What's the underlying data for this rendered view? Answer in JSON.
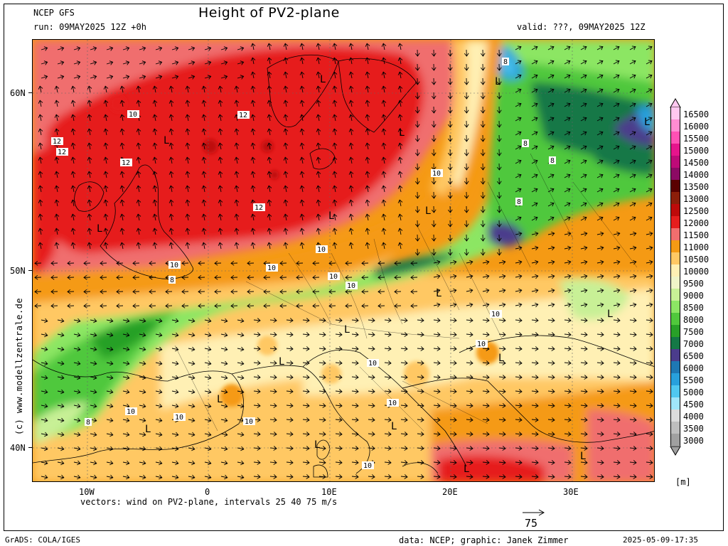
{
  "header": {
    "model": "NCEP GFS",
    "run": "run: 09MAY2025 12Z +0h",
    "title": "Height of PV2-plane",
    "valid": "valid: ???, 09MAY2025 12Z"
  },
  "axes": {
    "lat_labels": [
      "60N",
      "50N",
      "40N"
    ],
    "lon_labels": [
      "10W",
      "0",
      "10E",
      "20E",
      "30E"
    ]
  },
  "legend": {
    "values": [
      "16500",
      "16000",
      "15500",
      "15000",
      "14500",
      "14000",
      "13500",
      "13000",
      "12500",
      "12000",
      "11500",
      "11000",
      "10500",
      "10000",
      "9500",
      "9000",
      "8500",
      "8000",
      "7500",
      "7000",
      "6500",
      "6000",
      "5500",
      "5000",
      "4500",
      "4000",
      "3500",
      "3000"
    ],
    "colors": [
      "#ffc8f0",
      "#ff8cd2",
      "#ff50b4",
      "#e6148c",
      "#be0a78",
      "#8c0a64",
      "#5a0000",
      "#8c1e0a",
      "#be0a0a",
      "#e61e1e",
      "#f06e6e",
      "#f59a14",
      "#ffc864",
      "#fff0b4",
      "#f0f5c8",
      "#c8f096",
      "#8ce664",
      "#50c83c",
      "#28a028",
      "#147846",
      "#4b3c8c",
      "#1e78b4",
      "#28a0dc",
      "#50c8f0",
      "#a0e6fa",
      "#dcdcdc",
      "#bebebe",
      "#a0a0a0"
    ],
    "unit": "[m]"
  },
  "footer": {
    "vectors": "vectors: wind on PV2-plane, intervals 25 40 75 m/s",
    "scale_value": "75",
    "grads": "GrADS: COLA/IGES",
    "data_credit": "data: NCEP; graphic: Janek Zimmer",
    "timestamp": "2025-05-09-17:35",
    "copyright": "(c) www.modellzentrale.de"
  },
  "map_labels": {
    "lows": [
      "L",
      "L",
      "L",
      "L",
      "L",
      "L",
      "L",
      "L",
      "L",
      "L",
      "L",
      "L",
      "L",
      "L",
      "L",
      "L",
      "L",
      "L",
      "L"
    ],
    "contours": [
      "12",
      "12",
      "12",
      "12",
      "12",
      "10",
      "10",
      "10",
      "10",
      "10",
      "8",
      "8",
      "8",
      "8",
      "8",
      "10",
      "10",
      "10",
      "10",
      "10",
      "10",
      "10",
      "10",
      "10",
      "10",
      "8"
    ]
  }
}
